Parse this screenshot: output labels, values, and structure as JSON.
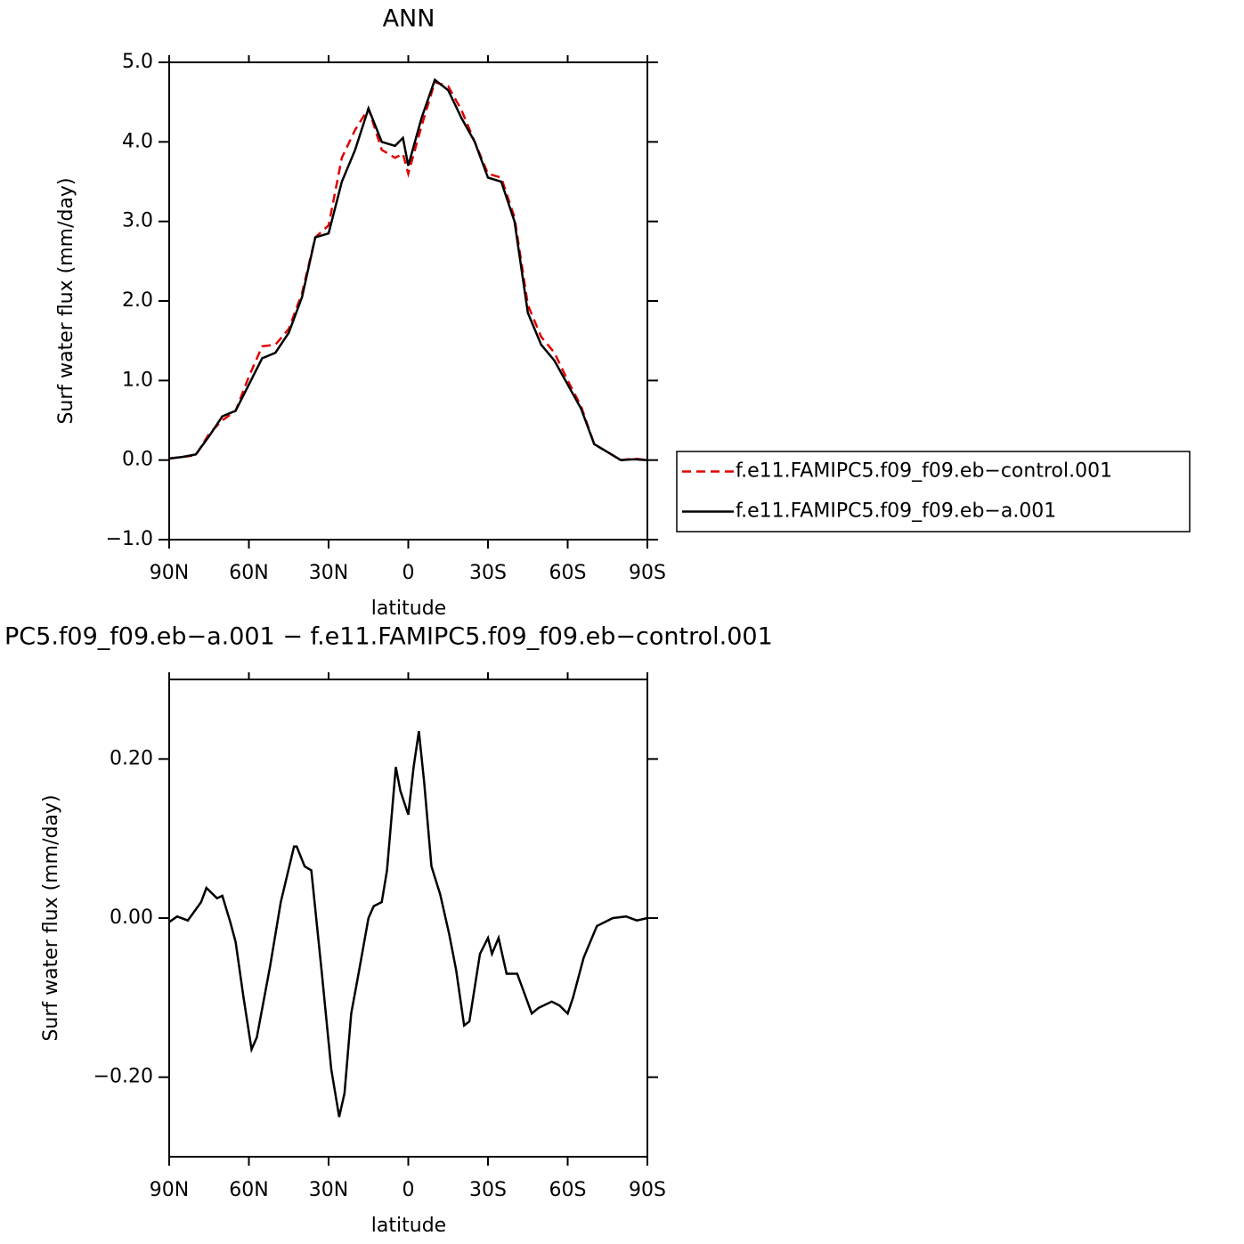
{
  "chart_data": [
    {
      "type": "line",
      "title": "ANN",
      "xlabel": "latitude",
      "ylabel": "Surf water flux (mm/day)",
      "x": [
        90,
        85,
        80,
        75,
        70,
        65,
        60,
        55,
        50,
        45,
        40,
        35,
        30,
        25,
        20,
        15,
        10,
        5,
        2,
        0,
        -5,
        -10,
        -15,
        -20,
        -25,
        -30,
        -35,
        -40,
        -45,
        -50,
        -55,
        -60,
        -65,
        -70,
        -75,
        -80,
        -85,
        -90
      ],
      "series": [
        {
          "name": "f.e11.FAMIPC5.f09_f09.eb−control.001",
          "color": "#e00000",
          "line_style": "dashed",
          "values": [
            0.02,
            0.04,
            0.06,
            0.33,
            0.5,
            0.62,
            1.05,
            1.43,
            1.45,
            1.65,
            2.1,
            2.8,
            2.95,
            3.8,
            4.15,
            4.42,
            3.9,
            3.8,
            3.85,
            3.6,
            4.2,
            4.75,
            4.7,
            4.4,
            4.0,
            3.6,
            3.55,
            3.05,
            1.95,
            1.55,
            1.35,
            1.0,
            0.68,
            0.2,
            0.1,
            0.0,
            0.02,
            0.0
          ]
        },
        {
          "name": "f.e11.FAMIPC5.f09_f09.eb−a.001",
          "color": "#000000",
          "line_style": "solid",
          "values": [
            0.02,
            0.04,
            0.07,
            0.3,
            0.55,
            0.62,
            0.95,
            1.28,
            1.35,
            1.6,
            2.05,
            2.8,
            2.85,
            3.5,
            3.9,
            4.42,
            4.0,
            3.95,
            4.05,
            3.7,
            4.3,
            4.78,
            4.65,
            4.3,
            4.0,
            3.55,
            3.5,
            3.0,
            1.85,
            1.45,
            1.25,
            0.95,
            0.65,
            0.2,
            0.1,
            0.0,
            0.01,
            0.0
          ]
        }
      ],
      "xlim": [
        90,
        -90
      ],
      "xticks": [
        {
          "value": 90,
          "label": "90N"
        },
        {
          "value": 60,
          "label": "60N"
        },
        {
          "value": 30,
          "label": "30N"
        },
        0,
        {
          "value": -30,
          "label": "30S"
        },
        {
          "value": -60,
          "label": "60S"
        },
        {
          "value": -90,
          "label": "90S"
        }
      ],
      "ylim": [
        -1,
        5
      ],
      "yticks": [
        {
          "value": -1,
          "label": "−1.0"
        },
        {
          "value": 0,
          "label": "0.0"
        },
        {
          "value": 1,
          "label": "1.0"
        },
        {
          "value": 2,
          "label": "2.0"
        },
        {
          "value": 3,
          "label": "3.0"
        },
        {
          "value": 4,
          "label": "4.0"
        },
        {
          "value": 5,
          "label": "5.0"
        }
      ],
      "legend": "right",
      "grid": false
    },
    {
      "type": "line",
      "title": "PC5.f09_f09.eb−a.001 − f.e11.FAMIPC5.f09_f09.eb−control.001",
      "xlabel": "latitude",
      "ylabel": "Surf water flux (mm/day)",
      "x": [
        90,
        87,
        83,
        78,
        76,
        72,
        70,
        67,
        65,
        62,
        59,
        57,
        52,
        48,
        43,
        42,
        39,
        36.5,
        32.5,
        29,
        26,
        24,
        21.5,
        19,
        15,
        13,
        10,
        8,
        4.7,
        3,
        0,
        -2,
        -4,
        -6,
        -8.7,
        -12,
        -15.4,
        -18,
        -21,
        -23,
        -27,
        -30,
        -31.5,
        -34,
        -37,
        -41,
        -46.5,
        -49,
        -54,
        -57,
        -60,
        -62,
        -66,
        -71,
        -77,
        -82,
        -86,
        -90
      ],
      "values": [
        -0.005,
        0.002,
        -0.003,
        0.02,
        0.038,
        0.025,
        0.028,
        -0.005,
        -0.03,
        -0.1,
        -0.165,
        -0.15,
        -0.06,
        0.02,
        0.09,
        0.09,
        0.065,
        0.06,
        -0.07,
        -0.19,
        -0.25,
        -0.22,
        -0.12,
        -0.075,
        0.0,
        0.015,
        0.02,
        0.06,
        0.19,
        0.16,
        0.13,
        0.19,
        0.235,
        0.17,
        0.065,
        0.03,
        -0.02,
        -0.065,
        -0.135,
        -0.13,
        -0.045,
        -0.025,
        -0.045,
        -0.025,
        -0.07,
        -0.07,
        -0.12,
        -0.113,
        -0.105,
        -0.11,
        -0.12,
        -0.1,
        -0.05,
        -0.01,
        0.0,
        0.002,
        -0.003,
        0.0
      ],
      "color": "#000000",
      "xlim": [
        90,
        -90
      ],
      "xticks": [
        {
          "value": 90,
          "label": "90N"
        },
        {
          "value": 60,
          "label": "60N"
        },
        {
          "value": 30,
          "label": "30N"
        },
        0,
        {
          "value": -30,
          "label": "30S"
        },
        {
          "value": -60,
          "label": "60S"
        },
        {
          "value": -90,
          "label": "90S"
        }
      ],
      "ylim": [
        -0.3,
        0.3
      ],
      "yticks": [
        {
          "value": -0.2,
          "label": "−0.20"
        },
        {
          "value": 0,
          "label": "0.00"
        },
        {
          "value": 0.2,
          "label": "0.20"
        }
      ],
      "grid": false
    }
  ]
}
